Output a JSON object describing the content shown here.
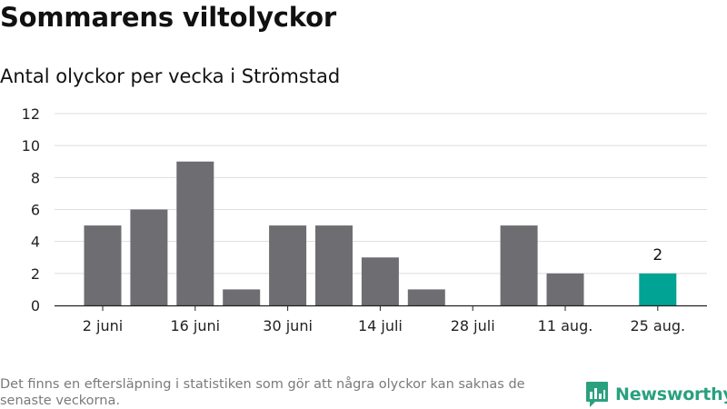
{
  "title": "Sommarens viltolyckor",
  "subtitle": "Antal olyckor per vecka i Strömstad",
  "footnote": "Det finns en eftersläpning i statistiken som gör att några olyckor kan saknas de senaste veckorna.",
  "brand": {
    "name": "Newsworthy",
    "icon": "newsworthy-logo-icon",
    "color": "#2aa07f"
  },
  "chart_data": {
    "type": "bar",
    "title": "Sommarens viltolyckor",
    "subtitle": "Antal olyckor per vecka i Strömstad",
    "xlabel": "",
    "ylabel": "",
    "categories": [
      "2 juni",
      "9 juni",
      "16 juni",
      "23 juni",
      "30 juni",
      "7 juli",
      "14 juli",
      "21 juli",
      "28 juli",
      "4 aug.",
      "11 aug.",
      "18 aug.",
      "25 aug."
    ],
    "values": [
      5,
      6,
      9,
      1,
      5,
      5,
      3,
      1,
      0,
      5,
      2,
      0,
      2
    ],
    "x_tick_labels": [
      "2 juni",
      "16 juni",
      "30 juni",
      "14 juli",
      "28 juli",
      "11 aug.",
      "25 aug."
    ],
    "ylim": [
      0,
      12
    ],
    "yticks": [
      0,
      2,
      4,
      6,
      8,
      10,
      12
    ],
    "grid": true,
    "colors": {
      "bar": "#6e6d71",
      "highlight": "#00a394",
      "grid": "#dddddd"
    },
    "highlight_index": 12,
    "data_labels": [
      {
        "category": "25 aug.",
        "value": "2"
      }
    ]
  }
}
